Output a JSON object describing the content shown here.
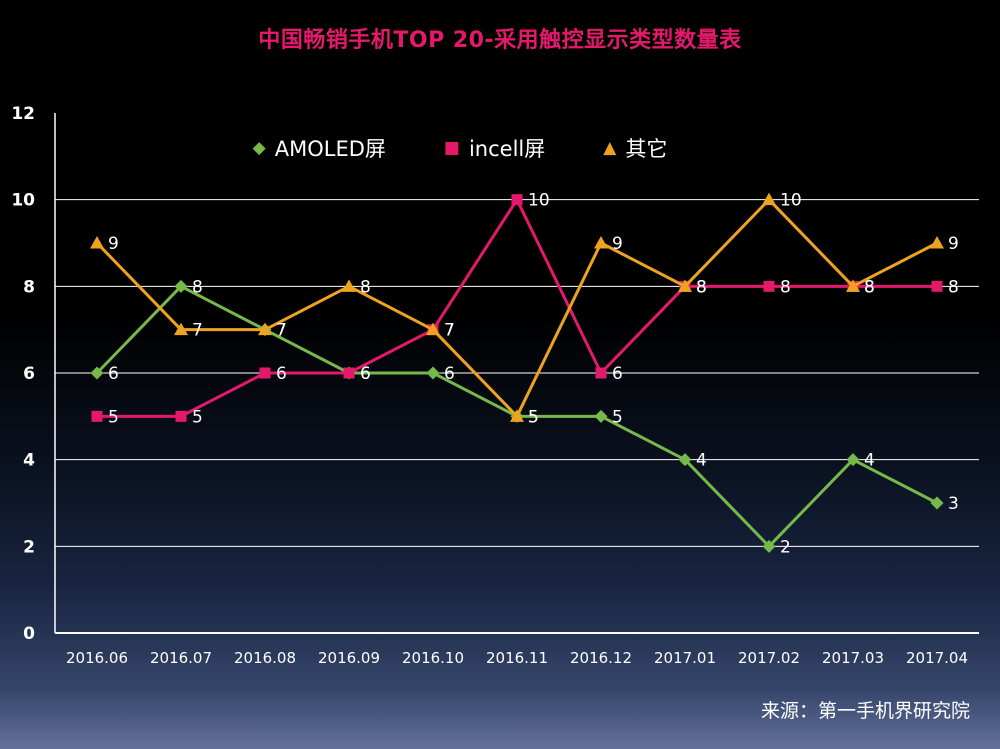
{
  "title": "中国畅销手机TOP 20-采用触控显示类型数量表",
  "source_note": "来源：第一手机界研究院",
  "colors": {
    "title": "#e5196c",
    "axis": "#ffffff",
    "data_label": "#ffffff",
    "background_top": "#000000",
    "background_bottom": "#64719b"
  },
  "chart_data": {
    "type": "line",
    "title": "中国畅销手机TOP 20-采用触控显示类型数量表",
    "categories": [
      "2016.06",
      "2016.07",
      "2016.08",
      "2016.09",
      "2016.10",
      "2016.11",
      "2016.12",
      "2017.01",
      "2017.02",
      "2017.03",
      "2017.04"
    ],
    "series": [
      {
        "name": "AMOLED屏",
        "marker": "diamond",
        "color": "#76b94a",
        "values": [
          6,
          8,
          7,
          6,
          6,
          5,
          5,
          4,
          2,
          4,
          3
        ]
      },
      {
        "name": "incell屏",
        "marker": "square",
        "color": "#e5196c",
        "values": [
          5,
          5,
          6,
          6,
          7,
          10,
          6,
          8,
          8,
          8,
          8
        ]
      },
      {
        "name": "其它",
        "marker": "triangle",
        "color": "#eea320",
        "values": [
          9,
          7,
          7,
          8,
          7,
          5,
          9,
          8,
          10,
          8,
          9
        ]
      }
    ],
    "xlabel": "",
    "ylabel": "",
    "ylim": [
      0,
      12
    ],
    "ytick_step": 2,
    "grid": true,
    "legend_position": "top-inside"
  }
}
